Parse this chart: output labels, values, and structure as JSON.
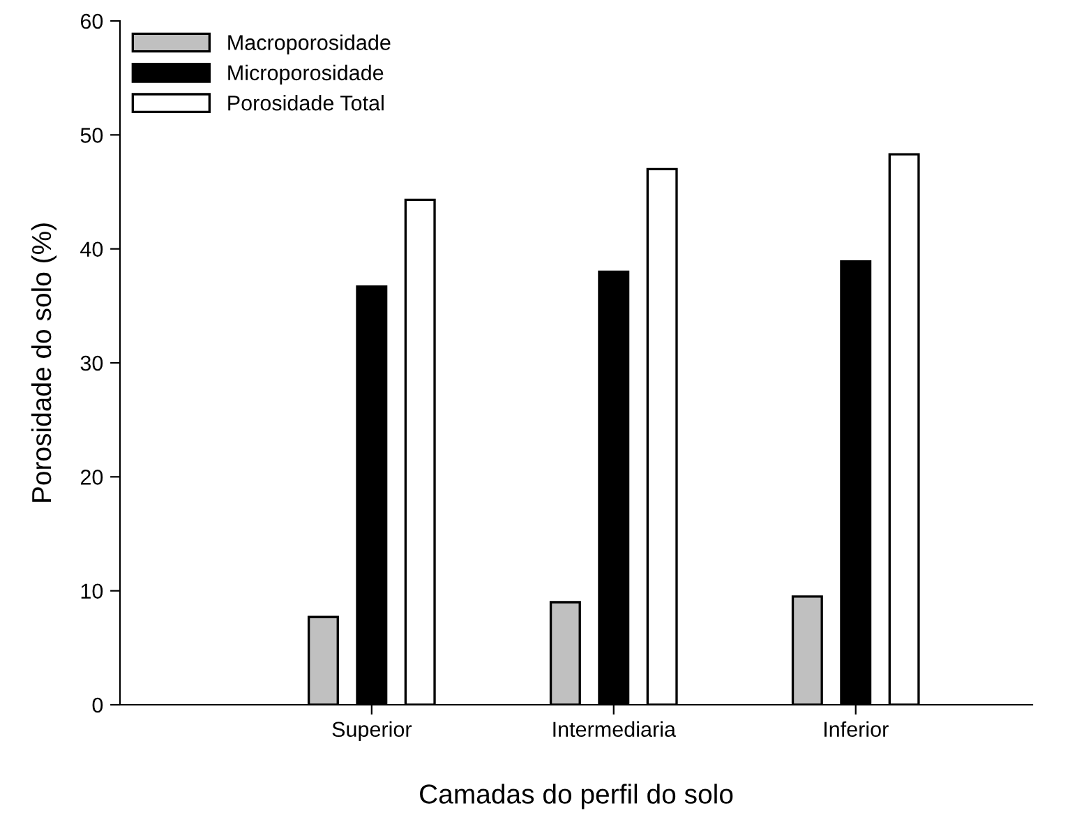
{
  "chart_data": {
    "type": "bar",
    "xlabel": "Camadas do perfil do solo",
    "ylabel": "Porosidade do solo (%)",
    "categories": [
      "Superior",
      "Intermediaria",
      "Inferior"
    ],
    "series": [
      {
        "name": "Macroporosidade",
        "color": "#c0c0c0",
        "values": [
          7.7,
          9.0,
          9.5
        ]
      },
      {
        "name": "Microporosidade",
        "color": "#000000",
        "values": [
          36.7,
          38.0,
          38.9
        ]
      },
      {
        "name": "Porosidade Total",
        "color": "#ffffff",
        "values": [
          44.3,
          47.0,
          48.3
        ]
      }
    ],
    "ylim": [
      0,
      60
    ],
    "yticks": [
      0,
      10,
      20,
      30,
      40,
      50,
      60
    ],
    "grid": false,
    "legend": "top left"
  }
}
